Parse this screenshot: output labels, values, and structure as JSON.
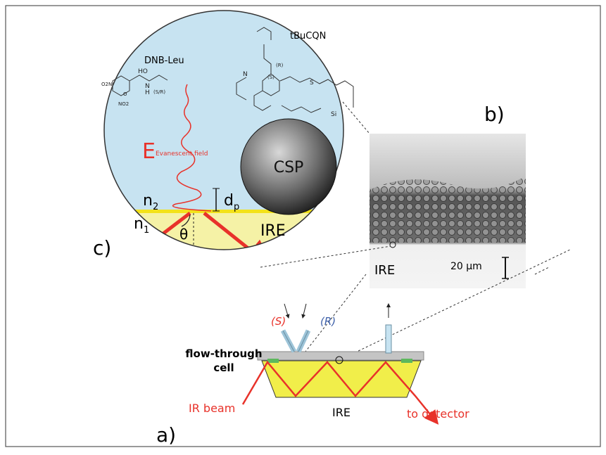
{
  "panels": {
    "a": "a)",
    "b": "b)",
    "c": "c)"
  },
  "zoom": {
    "tBuCQN": "tBuCQN",
    "DNB_Leu": "DNB-Leu",
    "evanescent": {
      "symbol": "E",
      "sub": "Evanescent field"
    },
    "CSP": "CSP",
    "n2": {
      "base": "n",
      "sub": "2"
    },
    "dp": {
      "base": "d",
      "sub": "p"
    },
    "n1": {
      "base": "n",
      "sub": "1"
    },
    "theta": "θ",
    "IRE": "IRE",
    "chem": {
      "HO": "HO",
      "O": "O",
      "N": "N",
      "H": "H",
      "SR": "(S/R)",
      "NO2": "NO2",
      "O2N": "O2N",
      "R": "(R)",
      "S": "(S)",
      "Si": "Si",
      "S_atom": "S"
    }
  },
  "sem": {
    "IRE": "IRE",
    "scale": "20 μm"
  },
  "cell": {
    "S": "(S)",
    "R": "(R)",
    "title_line1": "flow-through",
    "title_line2": "cell",
    "IR_beam": "IR beam",
    "IRE": "IRE",
    "detector": "to detector"
  }
}
